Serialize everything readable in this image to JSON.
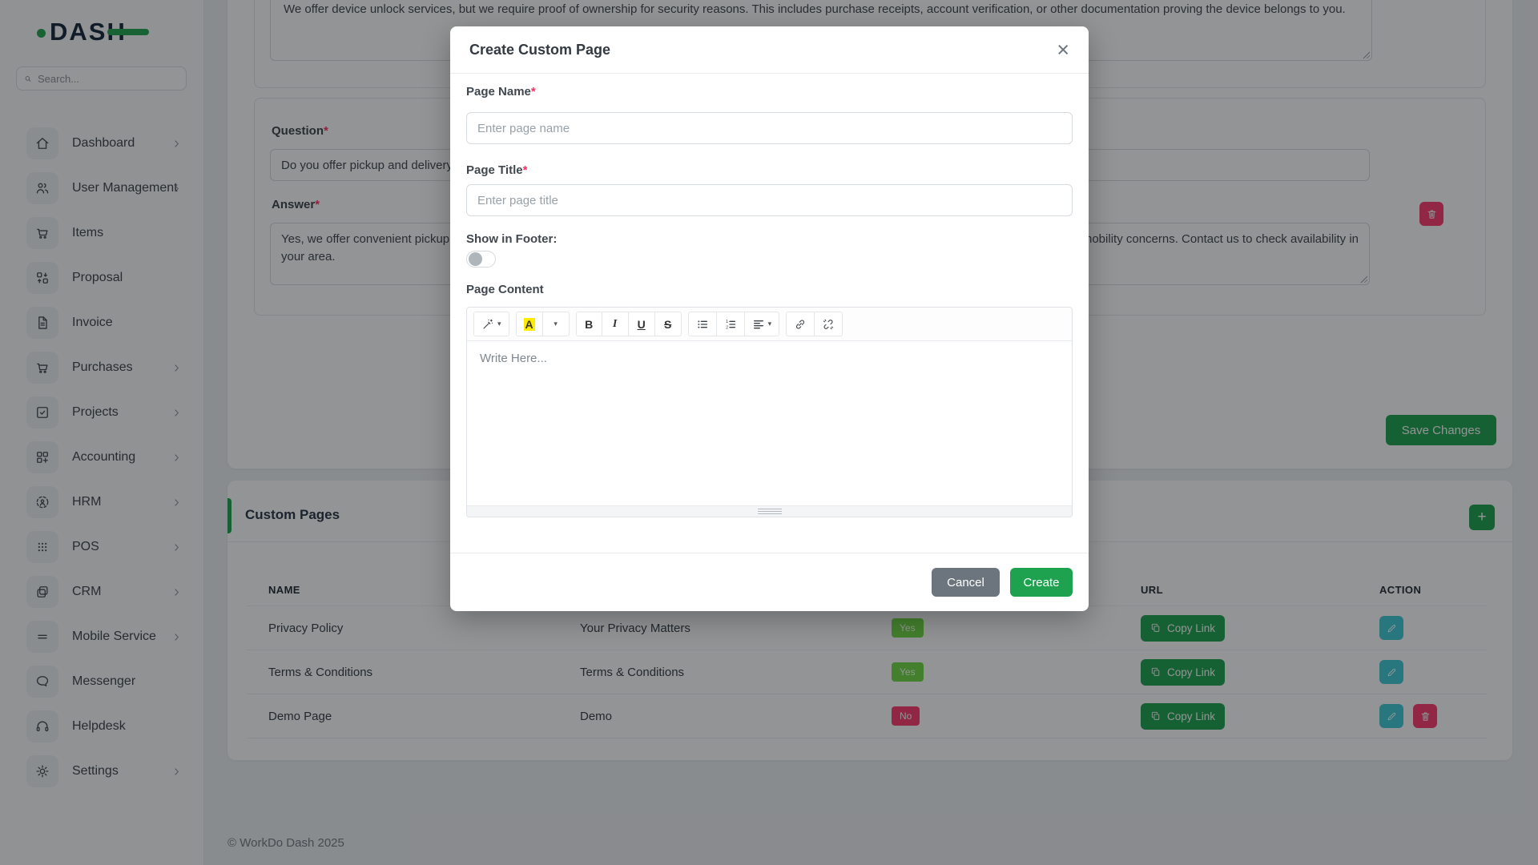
{
  "colors": {
    "primary_green": "#1ea24f",
    "badge_yes_green": "#6fd943",
    "badge_no_red": "#ff3a6e",
    "edit_teal": "#3ec9d6",
    "delete_red": "#ff3a6e",
    "cancel_gray": "#6c757d",
    "highlight_yellow": "#ffeb00"
  },
  "sidebar": {
    "logo_text": "DASH",
    "search_placeholder": "Search...",
    "items": [
      {
        "label": "Dashboard",
        "icon": "home-icon",
        "chevron": true
      },
      {
        "label": "User Management",
        "icon": "users-icon",
        "chevron": true
      },
      {
        "label": "Items",
        "icon": "cart-icon",
        "chevron": false
      },
      {
        "label": "Proposal",
        "icon": "proposal-icon",
        "chevron": false
      },
      {
        "label": "Invoice",
        "icon": "invoice-icon",
        "chevron": false
      },
      {
        "label": "Purchases",
        "icon": "cart-icon",
        "chevron": true
      },
      {
        "label": "Projects",
        "icon": "check-square-icon",
        "chevron": true
      },
      {
        "label": "Accounting",
        "icon": "grid-plus-icon",
        "chevron": true
      },
      {
        "label": "HRM",
        "icon": "person-target-icon",
        "chevron": true
      },
      {
        "label": "POS",
        "icon": "dots-grid-icon",
        "chevron": true
      },
      {
        "label": "CRM",
        "icon": "overlap-squares-icon",
        "chevron": true
      },
      {
        "label": "Mobile Service",
        "icon": "lines-icon",
        "chevron": true
      },
      {
        "label": "Messenger",
        "icon": "chat-icon",
        "chevron": false
      },
      {
        "label": "Helpdesk",
        "icon": "headset-icon",
        "chevron": false
      },
      {
        "label": "Settings",
        "icon": "gear-icon",
        "chevron": true
      }
    ]
  },
  "content": {
    "faq_top": {
      "answer_value": "We offer device unlock services, but we require proof of ownership for security reasons. This includes purchase receipts, account verification, or other documentation proving the device belongs to you."
    },
    "faq_item": {
      "question_label": "Question",
      "required_mark": "*",
      "question_value": "Do you offer pickup and delivery services?",
      "answer_label": "Answer",
      "answer_line1_left": "Yes, we offer convenient pickup",
      "answer_line1_right": "mobility concerns. Contact us to check availability in",
      "answer_line2": "your area."
    },
    "save_button": "Save Changes",
    "custom_pages": {
      "title": "Custom Pages",
      "add_button_label": "+",
      "columns": [
        "NAME",
        "",
        "",
        "URL",
        "ACTION"
      ],
      "rows": [
        {
          "name": "Privacy Policy",
          "page_title": "Your Privacy Matters",
          "show_in_footer": "Yes",
          "url_button": "Copy Link",
          "actions": [
            "edit"
          ]
        },
        {
          "name": "Terms & Conditions",
          "page_title": "Terms & Conditions",
          "show_in_footer": "Yes",
          "url_button": "Copy Link",
          "actions": [
            "edit"
          ]
        },
        {
          "name": "Demo Page",
          "page_title": "Demo",
          "show_in_footer": "No",
          "url_button": "Copy Link",
          "actions": [
            "edit",
            "delete"
          ]
        }
      ]
    },
    "footer_copyright": "© WorkDo Dash 2025"
  },
  "modal": {
    "title": "Create Custom Page",
    "close_label": "×",
    "page_name": {
      "label": "Page Name",
      "required": "*",
      "placeholder": "Enter page name",
      "value": ""
    },
    "page_title": {
      "label": "Page Title",
      "required": "*",
      "placeholder": "Enter page title",
      "value": ""
    },
    "show_in_footer": {
      "label": "Show in Footer:",
      "state": "off"
    },
    "page_content": {
      "label": "Page Content",
      "placeholder": "Write Here..."
    },
    "toolbar_glyphs": {
      "color": "A",
      "bold": "B",
      "italic": "I",
      "underline": "U",
      "strikethrough": "S"
    },
    "cancel_button": "Cancel",
    "create_button": "Create"
  }
}
